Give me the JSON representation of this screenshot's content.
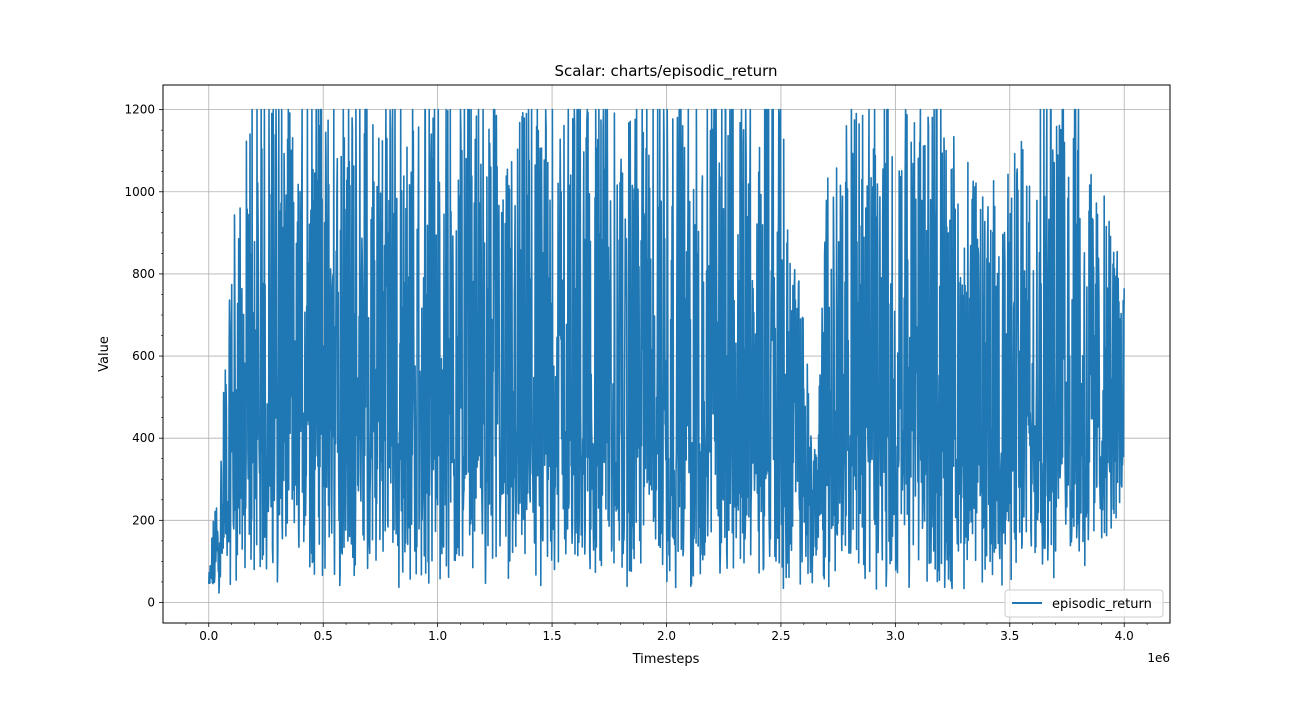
{
  "chart_data": {
    "type": "line",
    "title": "Scalar: charts/episodic_return",
    "xlabel": "Timesteps",
    "ylabel": "Value",
    "x_offset_label": "1e6",
    "xlim": [
      -0.2,
      4.2
    ],
    "ylim": [
      -50,
      1260
    ],
    "xticks": [
      0.0,
      0.5,
      1.0,
      1.5,
      2.0,
      2.5,
      3.0,
      3.5,
      4.0
    ],
    "xtick_labels": [
      "0.0",
      "0.5",
      "1.0",
      "1.5",
      "2.0",
      "2.5",
      "3.0",
      "3.5",
      "4.0"
    ],
    "yticks": [
      0,
      200,
      400,
      600,
      800,
      1000,
      1200
    ],
    "ytick_labels": [
      "0",
      "200",
      "400",
      "600",
      "800",
      "1000",
      "1200"
    ],
    "grid": true,
    "legend_position": "bottom-right",
    "series": [
      {
        "name": "episodic_return",
        "color": "#1f77b4",
        "x_range": [
          0.0,
          4.0
        ],
        "y_range": [
          10,
          1200
        ],
        "envelope": {
          "x": [
            0.0,
            0.05,
            0.1,
            0.15,
            0.2,
            0.3,
            0.5,
            0.7,
            1.0,
            1.3,
            1.5,
            1.7,
            2.0,
            2.3,
            2.5,
            2.6,
            2.65,
            2.7,
            2.8,
            3.0,
            3.2,
            3.4,
            3.6,
            3.8,
            4.0
          ],
          "low": [
            10,
            15,
            40,
            50,
            40,
            40,
            40,
            30,
            30,
            30,
            30,
            30,
            30,
            30,
            30,
            20,
            20,
            30,
            30,
            30,
            20,
            20,
            30,
            30,
            200
          ],
          "typical": [
            40,
            150,
            330,
            380,
            400,
            420,
            430,
            420,
            420,
            410,
            400,
            400,
            400,
            390,
            360,
            300,
            280,
            370,
            420,
            450,
            420,
            380,
            420,
            430,
            450
          ],
          "high": [
            70,
            400,
            950,
            1200,
            1200,
            1200,
            1200,
            1200,
            1200,
            1200,
            1200,
            1200,
            1200,
            1200,
            1200,
            700,
            400,
            1100,
            1200,
            1200,
            1200,
            1000,
            1200,
            1200,
            830
          ]
        }
      }
    ]
  }
}
